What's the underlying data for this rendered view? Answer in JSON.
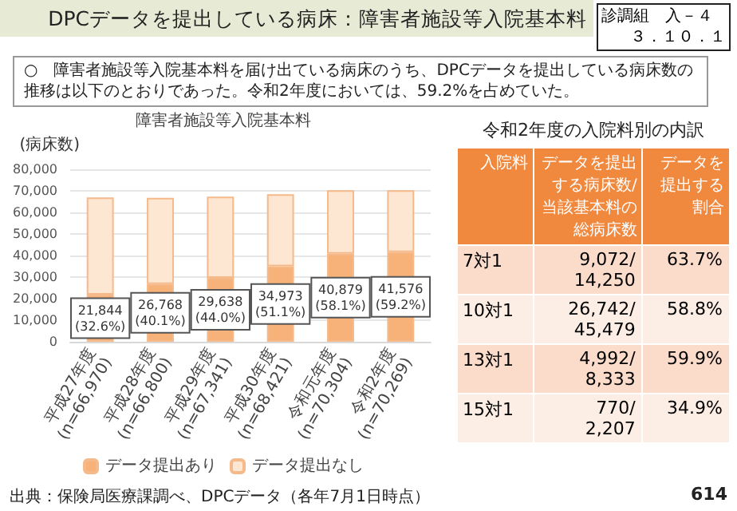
{
  "chart_data": [
    {
      "type": "bar",
      "title": "障害者施設等入院基本料",
      "ylabel": "(病床数)",
      "categories": [
        "平成27年度\n(n=66,970)",
        "平成28年度\n(n=66,800)",
        "平成29年度\n(n=67,341)",
        "平成30年度\n(n=68,421)",
        "令和元年度\n(n=70,304)",
        "令和2年度\n(n=70,269)"
      ],
      "stacked": true,
      "series": [
        {
          "name": "データ提出あり",
          "color": "#f7b27a",
          "values": [
            21844,
            26768,
            29638,
            34973,
            40879,
            41576
          ],
          "value_labels": [
            "21,844\n(32.6%)",
            "26,768\n(40.1%)",
            "29,638\n(44.0%)",
            "34,973\n(51.1%)",
            "40,879\n(58.1%)",
            "41,576\n(59.2%)"
          ]
        },
        {
          "name": "データ提出なし",
          "color": "#fde6d2",
          "values": [
            45126,
            40032,
            37703,
            33448,
            29425,
            28693
          ]
        }
      ],
      "ylim": [
        0,
        80000
      ],
      "yticks": [
        0,
        {
          "value": 10000,
          "label": "10,000"
        },
        {
          "value": 20000,
          "label": "20,000"
        },
        {
          "value": 30000,
          "label": "30,000"
        },
        {
          "value": 40000,
          "label": "40,000"
        },
        {
          "value": 50000,
          "label": "50,000"
        },
        {
          "value": 60000,
          "label": "60,000"
        },
        {
          "value": 70000,
          "label": "70,000"
        },
        {
          "value": 80000,
          "label": "80,000"
        }
      ],
      "grid": "y",
      "legend": "bottom",
      "annotations": [
        "DPCデータを提出している病床：障害者施設等入院基本料",
        "診調組　入－４",
        "３．１０．１",
        "○　障害者施設等入院基本料を届け出ている病床のうち、DPCデータを提出している病床数の推移は以下のとおりであった。令和2年度においては、59.2%を占めていた。",
        "出典：保険局医療課調べ、DPCデータ（各年7月1日時点）",
        "614"
      ]
    },
    {
      "type": "other",
      "title": "令和2年度の入院料別の内訳",
      "categories": [
        "入院料",
        "データを提出する病床数/当該基本料の総病床数",
        "データを提出する割合"
      ],
      "y_categories": [
        "7対1",
        "10対1",
        "13対1",
        "15対1"
      ],
      "cell_labels": [
        [
          "9,072/\n14,250",
          "63.7%"
        ],
        [
          "26,742/\n45,479",
          "58.8%"
        ],
        [
          "4,992/\n8,333",
          "59.9%"
        ],
        [
          "770/\n2,207",
          "34.9%"
        ]
      ]
    }
  ]
}
